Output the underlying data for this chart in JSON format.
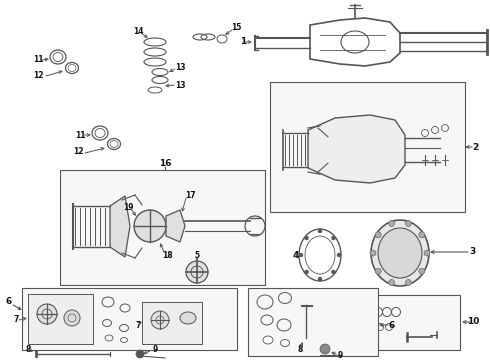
{
  "bg_color": "#ffffff",
  "lc": "#555555",
  "tc": "#111111",
  "figsize": [
    4.9,
    3.6
  ],
  "dpi": 100,
  "fs_label": 6.5,
  "fs_small": 5.5
}
